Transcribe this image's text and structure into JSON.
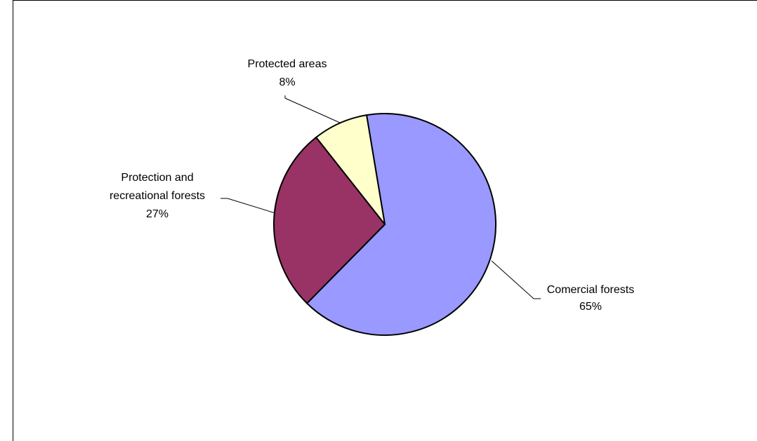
{
  "chart_data": {
    "type": "pie",
    "title": "",
    "slices": [
      {
        "label_lines": [
          "Comercial forests"
        ],
        "value_label": "65%",
        "value": 65,
        "color": "#9999ff"
      },
      {
        "label_lines": [
          "Protection and",
          "recreational forests"
        ],
        "value_label": "27%",
        "value": 27,
        "color": "#993366"
      },
      {
        "label_lines": [
          "Protected areas"
        ],
        "value_label": "8%",
        "value": 8,
        "color": "#ffffcc"
      }
    ],
    "legend": "none",
    "data_labels": "outside-with-leader-lines"
  }
}
